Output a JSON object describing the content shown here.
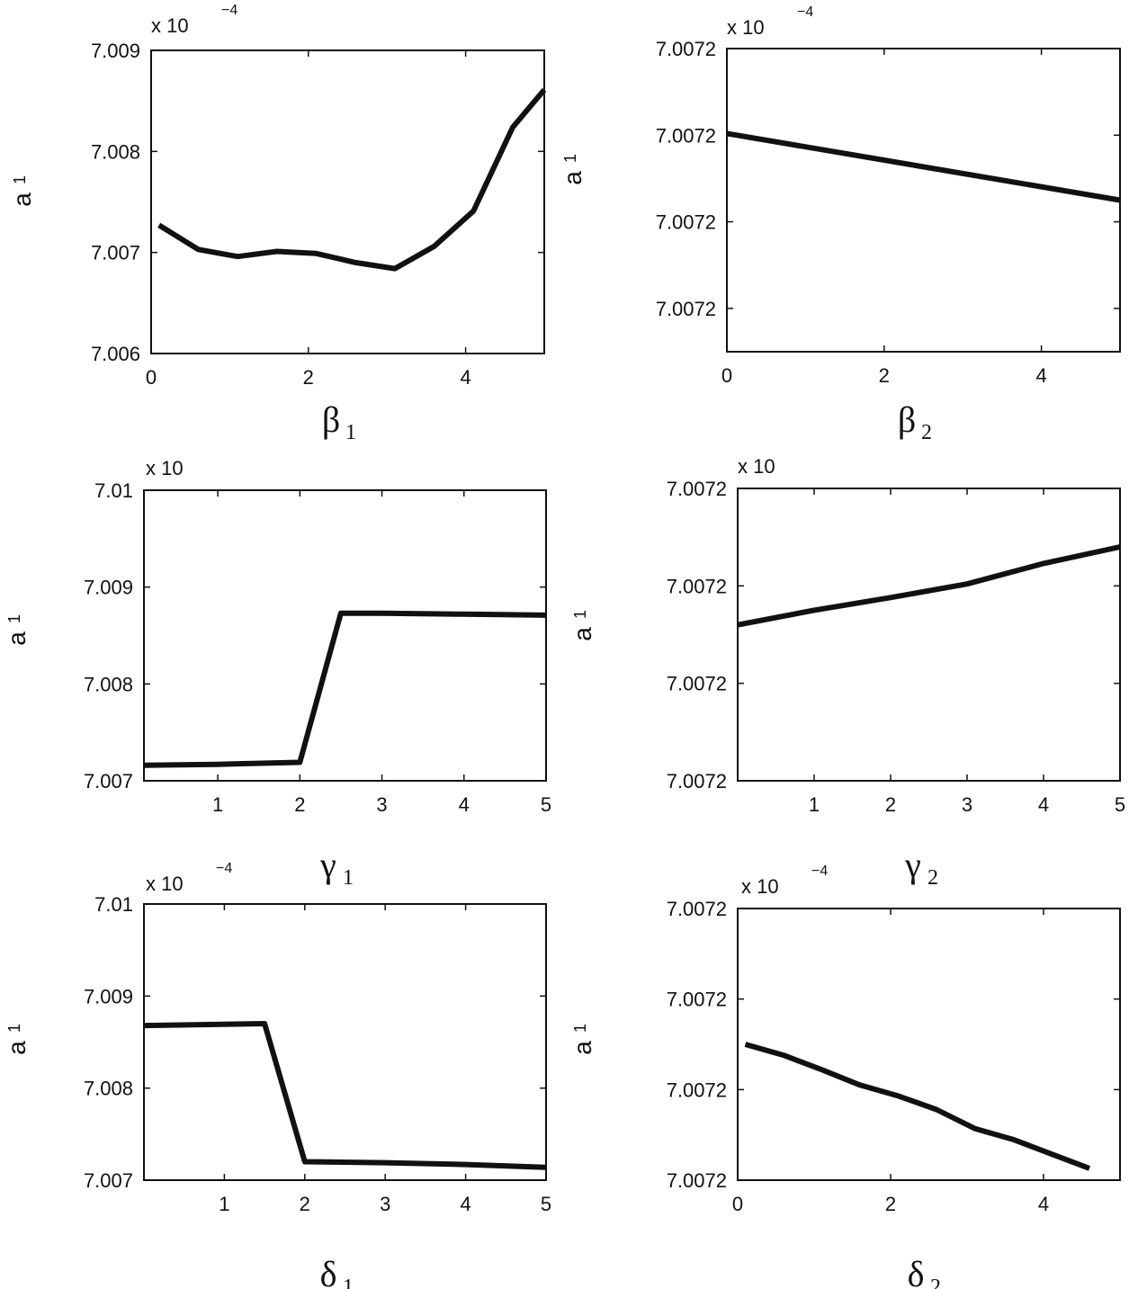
{
  "chart_data": [
    {
      "type": "line",
      "multiplier": {
        "base": "x 10",
        "exponent": "−4"
      },
      "ylabel": {
        "main": "a",
        "sub": "1"
      },
      "xlabel": {
        "main": "β",
        "sub": "1"
      },
      "xlim": [
        0,
        5
      ],
      "ylim": [
        7.006,
        7.009
      ],
      "xticks": [
        0,
        2,
        4
      ],
      "xtick_labels": [
        "0",
        "2",
        "4"
      ],
      "yticks": [
        7.006,
        7.007,
        7.008,
        7.009
      ],
      "ytick_labels": [
        "7.006",
        "7.007",
        "7.008",
        "7.009"
      ],
      "x": [
        0.1,
        0.6,
        1.1,
        1.6,
        2.1,
        2.6,
        3.1,
        3.6,
        4.1,
        4.6,
        5.0
      ],
      "y": [
        7.00727,
        7.00703,
        7.00696,
        7.00701,
        7.00699,
        7.0069,
        7.00684,
        7.00706,
        7.00741,
        7.00824,
        7.00861
      ]
    },
    {
      "type": "line",
      "multiplier": {
        "base": "x 10",
        "exponent": "−4"
      },
      "ylabel": {
        "main": "a",
        "sub": "1"
      },
      "xlabel": {
        "main": "β",
        "sub": "2"
      },
      "xlim": [
        0,
        5
      ],
      "ylim": [
        0,
        3.5
      ],
      "xticks": [
        0,
        2,
        4
      ],
      "xtick_labels": [
        "0",
        "2",
        "4"
      ],
      "yticks": [
        0.5,
        1.5,
        2.5,
        3.5
      ],
      "ytick_labels": [
        "7.0072",
        "7.0072",
        "7.0072",
        "7.0072"
      ],
      "x": [
        0,
        5
      ],
      "y": [
        2.52,
        1.75
      ]
    },
    {
      "type": "line",
      "multiplier": {
        "base": "x 10",
        "exponent": ""
      },
      "ylabel": {
        "main": "a",
        "sub": "1"
      },
      "xlabel": {
        "main": "γ",
        "sub": "1"
      },
      "xlim": [
        0.1,
        5
      ],
      "ylim": [
        7.007,
        7.01
      ],
      "xticks": [
        1,
        2,
        3,
        4,
        5
      ],
      "xtick_labels": [
        "1",
        "2",
        "3",
        "4",
        "5"
      ],
      "yticks": [
        7.007,
        7.008,
        7.009,
        7.01
      ],
      "ytick_labels": [
        "7.007",
        "7.008",
        "7.009",
        "7.01"
      ],
      "x": [
        0.1,
        1.0,
        2.0,
        2.5,
        3.0,
        4.0,
        5.0
      ],
      "y": [
        7.00716,
        7.00717,
        7.00719,
        7.00873,
        7.00873,
        7.00872,
        7.00871
      ]
    },
    {
      "type": "line",
      "multiplier": {
        "base": "x 10",
        "exponent": ""
      },
      "ylabel": {
        "main": "a",
        "sub": "1"
      },
      "xlabel": {
        "main": "γ",
        "sub": "2"
      },
      "xlim": [
        0,
        5
      ],
      "ylim": [
        0,
        3
      ],
      "xticks": [
        1,
        2,
        3,
        4,
        5
      ],
      "xtick_labels": [
        "1",
        "2",
        "3",
        "4",
        "5"
      ],
      "yticks": [
        0,
        1,
        2,
        3
      ],
      "ytick_labels": [
        "7.0072",
        "7.0072",
        "7.0072",
        "7.0072"
      ],
      "x": [
        0,
        1,
        2,
        3,
        4,
        5
      ],
      "y": [
        1.6,
        1.75,
        1.88,
        2.02,
        2.23,
        2.4
      ]
    },
    {
      "type": "line",
      "multiplier": {
        "base": "x 10",
        "exponent": "−4"
      },
      "ylabel": {
        "main": "a",
        "sub": "1"
      },
      "xlabel": {
        "main": "δ",
        "sub": "1"
      },
      "xlim": [
        0,
        5
      ],
      "ylim": [
        7.007,
        7.01
      ],
      "xticks": [
        1,
        2,
        3,
        4,
        5
      ],
      "xtick_labels": [
        "1",
        "2",
        "3",
        "4",
        "5"
      ],
      "yticks": [
        7.007,
        7.008,
        7.009,
        7.01
      ],
      "ytick_labels": [
        "7.007",
        "7.008",
        "7.009",
        "7.01"
      ],
      "x": [
        0,
        1.5,
        2.0,
        3.0,
        4.0,
        5.0
      ],
      "y": [
        7.00868,
        7.0087,
        7.0072,
        7.00719,
        7.00717,
        7.00714
      ]
    },
    {
      "type": "line",
      "multiplier": {
        "base": "x 10",
        "exponent": "−4"
      },
      "ylabel": {
        "main": "a",
        "sub": "1"
      },
      "xlabel": {
        "main": "δ",
        "sub": "2"
      },
      "xlim": [
        0,
        5
      ],
      "ylim": [
        0,
        3
      ],
      "xticks": [
        0,
        2,
        4
      ],
      "xtick_labels": [
        "0",
        "2",
        "4"
      ],
      "yticks": [
        0,
        1,
        2,
        3
      ],
      "ytick_labels": [
        "7.0072",
        "7.0072",
        "7.0072",
        "7.0072"
      ],
      "x": [
        0.1,
        0.6,
        1.1,
        1.6,
        2.1,
        2.6,
        3.1,
        3.6,
        4.1,
        4.6
      ],
      "y": [
        1.5,
        1.38,
        1.22,
        1.05,
        0.93,
        0.78,
        0.57,
        0.45,
        0.29,
        0.13
      ]
    }
  ]
}
